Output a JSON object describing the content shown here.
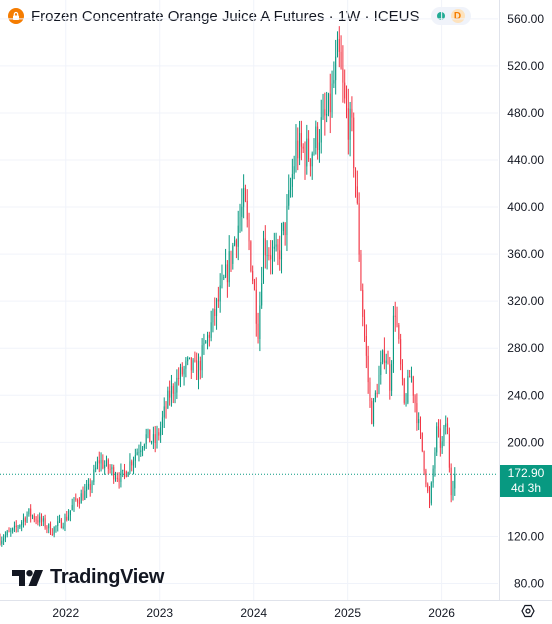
{
  "header": {
    "title": "Frozen Concentrate Orange Juice A Futures · 1W · ICEUS",
    "market_status": "open",
    "badge": "D"
  },
  "price_label": {
    "price": "172.90",
    "countdown": "4d 3h"
  },
  "brand": {
    "name": "TradingView"
  },
  "colors": {
    "up": "#089981",
    "down": "#f23645",
    "accent": "#f57c00",
    "grid": "#f0f3fa"
  },
  "chart_data": {
    "type": "candlestick",
    "interval": "1W",
    "y_ticks": [
      "560.00",
      "520.00",
      "480.00",
      "440.00",
      "400.00",
      "360.00",
      "320.00",
      "280.00",
      "240.00",
      "200.00",
      "120.00",
      "80.00"
    ],
    "x_ticks": [
      "2022",
      "2023",
      "2024",
      "2025",
      "2026"
    ],
    "ylim": [
      66,
      576
    ],
    "xlim": [
      2021.3,
      2026.6
    ],
    "last_price": 172.9,
    "grid": true,
    "anchor_closes": [
      [
        2021.3,
        118
      ],
      [
        2021.45,
        125
      ],
      [
        2021.6,
        140
      ],
      [
        2021.75,
        132
      ],
      [
        2021.85,
        125
      ],
      [
        2022.0,
        135
      ],
      [
        2022.1,
        150
      ],
      [
        2022.25,
        160
      ],
      [
        2022.35,
        185
      ],
      [
        2022.5,
        175
      ],
      [
        2022.6,
        170
      ],
      [
        2022.7,
        185
      ],
      [
        2022.85,
        205
      ],
      [
        2022.95,
        200
      ],
      [
        2023.0,
        210
      ],
      [
        2023.1,
        240
      ],
      [
        2023.2,
        255
      ],
      [
        2023.3,
        265
      ],
      [
        2023.4,
        260
      ],
      [
        2023.55,
        300
      ],
      [
        2023.7,
        340
      ],
      [
        2023.85,
        390
      ],
      [
        2023.9,
        405
      ],
      [
        2023.95,
        370
      ],
      [
        2024.05,
        295
      ],
      [
        2024.1,
        370
      ],
      [
        2024.25,
        355
      ],
      [
        2024.35,
        390
      ],
      [
        2024.45,
        450
      ],
      [
        2024.6,
        445
      ],
      [
        2024.7,
        465
      ],
      [
        2024.8,
        480
      ],
      [
        2024.9,
        530
      ],
      [
        2024.97,
        485
      ],
      [
        2025.05,
        460
      ],
      [
        2025.1,
        400
      ],
      [
        2025.15,
        320
      ],
      [
        2025.25,
        220
      ],
      [
        2025.32,
        250
      ],
      [
        2025.4,
        280
      ],
      [
        2025.45,
        250
      ],
      [
        2025.5,
        320
      ],
      [
        2025.6,
        230
      ],
      [
        2025.67,
        260
      ],
      [
        2025.8,
        190
      ],
      [
        2025.87,
        145
      ],
      [
        2025.95,
        210
      ],
      [
        2026.0,
        195
      ],
      [
        2026.05,
        220
      ],
      [
        2026.1,
        160
      ],
      [
        2026.14,
        172.9
      ]
    ]
  }
}
